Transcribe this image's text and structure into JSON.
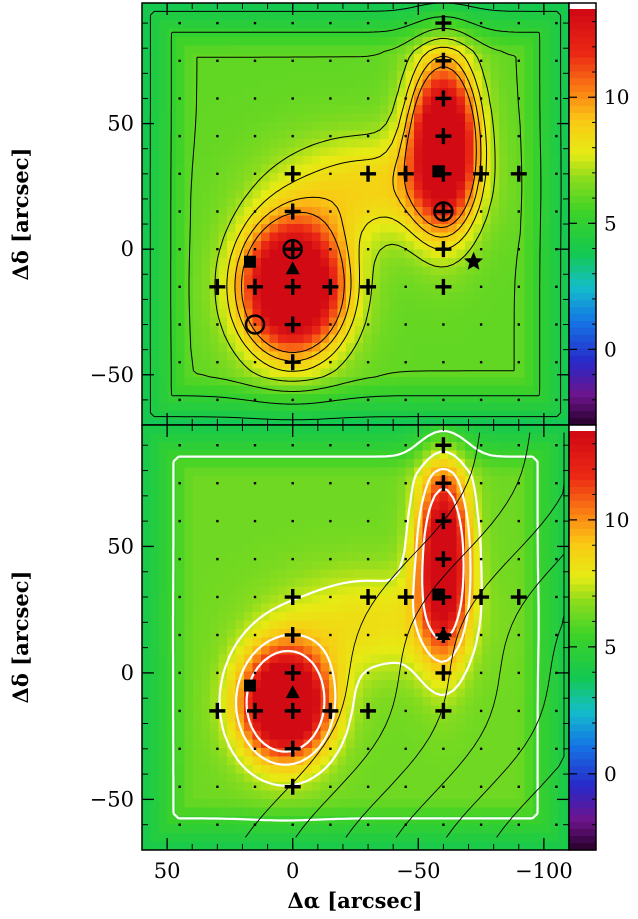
{
  "chart_data": [
    {
      "type": "heatmap",
      "panel": "top",
      "xlabel": "",
      "ylabel": "Δδ [arcsec]",
      "xlim": [
        60,
        -110
      ],
      "ylim": [
        -70,
        98
      ],
      "xticks": [
        50,
        0,
        -50,
        -100
      ],
      "yticks": [
        50,
        0,
        -50
      ],
      "ytick_labels": [
        "50",
        "0",
        "−50"
      ],
      "colorbar": {
        "range": [
          -3,
          13.5
        ],
        "ticks": [
          10,
          5,
          0
        ],
        "tick_labels": [
          "10",
          "5",
          "0"
        ]
      },
      "peaks": [
        {
          "x": 0,
          "y": -15,
          "amp": 11.5,
          "sx": 14,
          "sy": 18
        },
        {
          "x": -60,
          "y": 42,
          "amp": 10.5,
          "sx": 9,
          "sy": 22
        },
        {
          "x": -30,
          "y": 25,
          "amp": 2.5,
          "sx": 25,
          "sy": 15
        }
      ],
      "background": 6.2,
      "contour_color": "#000000",
      "contour_levels": [
        4.2,
        5.2,
        6.2,
        7.2,
        8.2,
        9.2,
        10.2
      ]
    },
    {
      "type": "heatmap",
      "panel": "bottom",
      "xlabel": "Δα [arcsec]",
      "ylabel": "Δδ [arcsec]",
      "xlim": [
        60,
        -110
      ],
      "ylim": [
        -70,
        98
      ],
      "xticks": [
        50,
        0,
        -50,
        -100
      ],
      "xtick_labels": [
        "50",
        "0",
        "−50",
        "−100"
      ],
      "yticks": [
        50,
        0,
        -50
      ],
      "ytick_labels": [
        "50",
        "0",
        "−50"
      ],
      "colorbar": {
        "range": [
          -3,
          13.5
        ],
        "ticks": [
          10,
          5,
          0
        ],
        "tick_labels": [
          "10",
          "5",
          "0"
        ]
      },
      "peaks": [
        {
          "x": 3,
          "y": -12,
          "amp": 11.5,
          "sx": 12,
          "sy": 15
        },
        {
          "x": -60,
          "y": 45,
          "amp": 9.5,
          "sx": 7,
          "sy": 25
        },
        {
          "x": -30,
          "y": 20,
          "amp": 2.0,
          "sx": 25,
          "sy": 15
        }
      ],
      "background": 6.4,
      "contour_color": "#ffffff",
      "contour_levels": [
        3.5,
        5.5,
        7.5,
        9.5,
        11.5
      ]
    }
  ],
  "markers": {
    "crosses": [
      [
        0,
        -45
      ],
      [
        0,
        -30
      ],
      [
        0,
        -15
      ],
      [
        0,
        0
      ],
      [
        0,
        15
      ],
      [
        0,
        30
      ],
      [
        -15,
        -15
      ],
      [
        15,
        -15
      ],
      [
        -30,
        -15
      ],
      [
        30,
        -15
      ],
      [
        -60,
        -15
      ],
      [
        -60,
        0
      ],
      [
        -60,
        15
      ],
      [
        -60,
        30
      ],
      [
        -60,
        45
      ],
      [
        -60,
        60
      ],
      [
        -60,
        75
      ],
      [
        -60,
        90
      ],
      [
        -45,
        30
      ],
      [
        -75,
        30
      ],
      [
        -90,
        30
      ],
      [
        -30,
        30
      ]
    ],
    "squares": [
      [
        -58,
        31
      ],
      [
        17,
        -5
      ]
    ],
    "triangles": [
      [
        0,
        -8
      ]
    ],
    "circle_top": [
      [
        0,
        0
      ],
      [
        -60,
        15
      ],
      [
        15,
        -30
      ]
    ],
    "star_top": [
      [
        -72,
        -5
      ]
    ],
    "triangle_bottom_extra": [
      [
        -60,
        15
      ]
    ]
  }
}
